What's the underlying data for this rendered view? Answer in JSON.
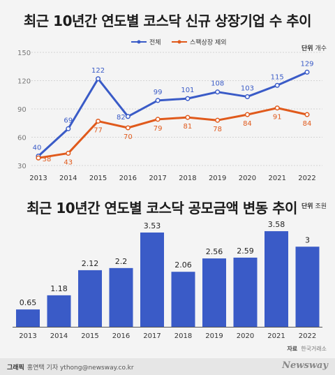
{
  "footer": {
    "credit_label": "그래픽",
    "credit_text": "홍연택 기자 ythong@newsway.co.kr",
    "brand": "Newsway",
    "source_label": "자료",
    "source_text": "한국거래소"
  },
  "chart_data": [
    {
      "type": "line",
      "title": "최근 10년간 연도별 코스닥 신규 상장기업 수 추이",
      "unit_label": "단위",
      "unit_value": "개수",
      "x": [
        "2013",
        "2014",
        "2015",
        "2016",
        "2017",
        "2018",
        "2019",
        "2020",
        "2021",
        "2022"
      ],
      "series": [
        {
          "name": "전체",
          "values": [
            40,
            69,
            122,
            82,
            99,
            101,
            108,
            103,
            115,
            129
          ],
          "color": "#3a5bc7"
        },
        {
          "name": "스팩상장 제외",
          "values": [
            38,
            43,
            77,
            70,
            79,
            81,
            78,
            84,
            91,
            84
          ],
          "color": "#e05a1c"
        }
      ],
      "yticks": [
        30,
        60,
        90,
        120,
        150
      ],
      "ylim": [
        30,
        150
      ],
      "grid": true,
      "legend": "top-center"
    },
    {
      "type": "bar",
      "title": "최근 10년간 연도별 코스닥 공모금액 변동 추이",
      "unit_label": "단위",
      "unit_value": "조원",
      "categories": [
        "2013",
        "2014",
        "2015",
        "2016",
        "2017",
        "2018",
        "2019",
        "2020",
        "2021",
        "2022"
      ],
      "values": [
        0.65,
        1.18,
        2.12,
        2.2,
        3.53,
        2.06,
        2.56,
        2.59,
        3.58,
        3
      ],
      "value_labels": [
        "0.65",
        "1.18",
        "2.12",
        "2.2",
        "3.53",
        "2.06",
        "2.56",
        "2.59",
        "3.58",
        "3"
      ],
      "color": "#3a5bc7",
      "ylim": [
        0,
        4
      ]
    }
  ]
}
